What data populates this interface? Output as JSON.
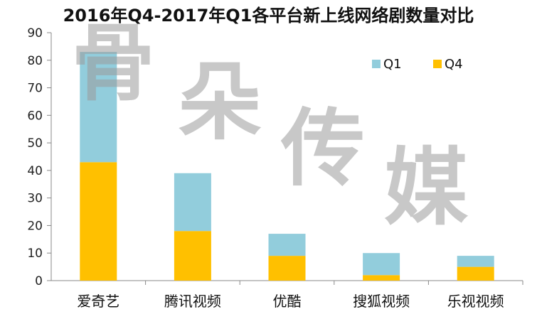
{
  "chart_data": {
    "type": "bar",
    "stacked": true,
    "title": "2016年Q4-2017年Q1各平台新上线网络剧数量对比",
    "categories": [
      "爱奇艺",
      "腾讯视频",
      "优酷",
      "搜狐视频",
      "乐视视频"
    ],
    "series": [
      {
        "name": "Q4",
        "color": "#FFC000",
        "values": [
          43,
          18,
          9,
          2,
          5
        ]
      },
      {
        "name": "Q1",
        "color": "#92CDDC",
        "values": [
          40,
          21,
          8,
          8,
          4
        ]
      }
    ],
    "ylim": [
      0,
      90
    ],
    "yticks": [
      0,
      10,
      20,
      30,
      40,
      50,
      60,
      70,
      80,
      90
    ],
    "legend_position": "top-right",
    "legend_order": [
      "Q1",
      "Q4"
    ],
    "grid": false
  },
  "watermark": {
    "text": "骨朵传媒",
    "color": "#9a9a9a"
  }
}
